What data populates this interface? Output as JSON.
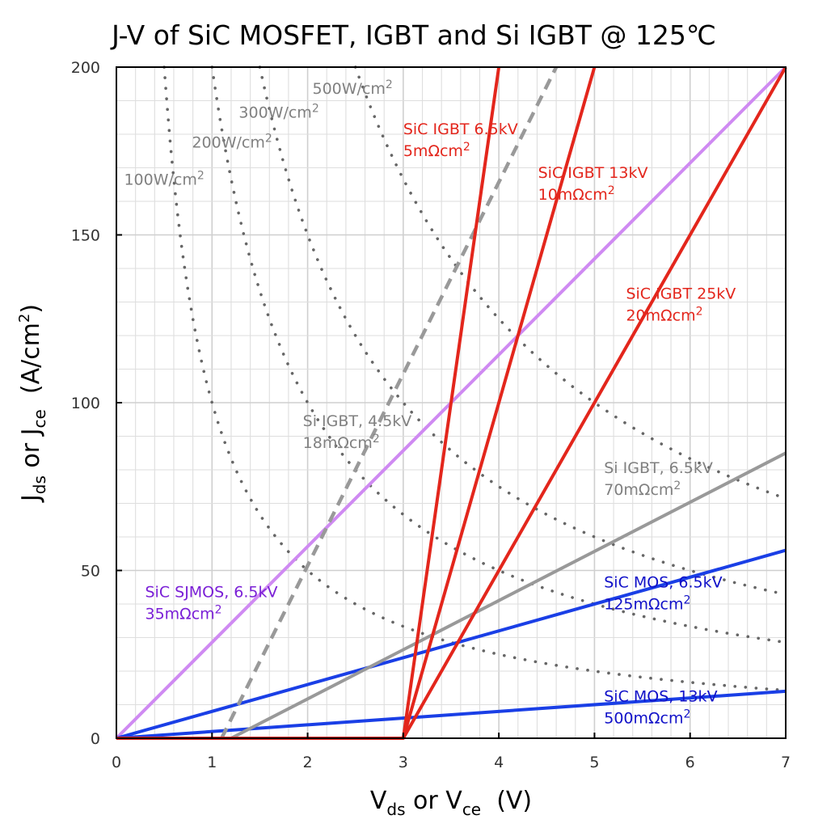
{
  "chart_data": {
    "type": "line",
    "title": "J-V of SiC MOSFET, IGBT and Si IGBT @ 125℃",
    "xlabel": {
      "main1": "V",
      "sub1": "ds",
      "mid": " or V",
      "sub2": "ce",
      "unit": "  (V)"
    },
    "ylabel": {
      "main1": "J",
      "sub1": "ds",
      "mid": " or J",
      "sub2": "ce",
      "unit": "  (A/cm",
      "sup": "2",
      "close": ")"
    },
    "xlim": [
      0,
      7
    ],
    "ylim": [
      0,
      200
    ],
    "xticks": [
      0,
      1,
      2,
      3,
      4,
      5,
      6,
      7
    ],
    "yticks": [
      0,
      50,
      100,
      150,
      200
    ],
    "xticklabels": [
      "0",
      "1",
      "2",
      "3",
      "4",
      "5",
      "6",
      "7"
    ],
    "yticklabels": [
      "0",
      "50",
      "100",
      "150",
      "200"
    ],
    "grid": {
      "x_minor_step": 0.2,
      "y_minor_step": 10
    },
    "series": [
      {
        "name": "SiC SJMOS, 6.5kV",
        "ron": "35mΩcm²",
        "color": "#cf8af2",
        "style": "solid",
        "points": [
          [
            0,
            0
          ],
          [
            7,
            200
          ]
        ]
      },
      {
        "name": "SiC MOS, 6.5kV",
        "ron": "125mΩcm²",
        "color": "#1a3fe6",
        "style": "solid",
        "points": [
          [
            0,
            0
          ],
          [
            7,
            56
          ]
        ]
      },
      {
        "name": "SiC MOS, 13kV",
        "ron": "500mΩcm²",
        "color": "#1a3fe6",
        "style": "solid",
        "points": [
          [
            0,
            0
          ],
          [
            7,
            14
          ]
        ]
      },
      {
        "name": "Si IGBT, 6.5kV",
        "ron": "70mΩcm²",
        "color": "#999999",
        "style": "solid",
        "points": [
          [
            1.2,
            0
          ],
          [
            7,
            85
          ]
        ]
      },
      {
        "name": "Si IGBT, 4.5kV",
        "ron": "18mΩcm²",
        "color": "#999999",
        "style": "dashed",
        "points": [
          [
            1.1,
            0
          ],
          [
            4.6,
            200
          ]
        ]
      },
      {
        "name": "SiC IGBT 25kV",
        "ron": "20mΩcm²",
        "color": "#e3261c",
        "style": "solid",
        "points": [
          [
            0,
            0
          ],
          [
            3,
            0
          ],
          [
            7,
            200
          ]
        ]
      },
      {
        "name": "SiC IGBT 13kV",
        "ron": "10mΩcm²",
        "color": "#e3261c",
        "style": "solid",
        "points": [
          [
            3,
            0
          ],
          [
            5,
            200
          ]
        ]
      },
      {
        "name": "SiC IGBT  6.5kV",
        "ron": "5mΩcm²",
        "color": "#e3261c",
        "style": "solid",
        "points": [
          [
            3,
            0
          ],
          [
            4,
            200
          ]
        ]
      }
    ],
    "power_curves": [
      {
        "label": "100W/cm²",
        "power": 100
      },
      {
        "label": "200W/cm²",
        "power": 200
      },
      {
        "label": "300W/cm²",
        "power": 300
      },
      {
        "label": "500W/cm²",
        "power": 500
      }
    ],
    "annotations": [
      {
        "line1": "SiC IGBT  6.5kV",
        "line2": "5mΩcm²",
        "color": "#e3261c",
        "at": [
          3.0,
          180
        ]
      },
      {
        "line1": "SiC IGBT 13kV",
        "line2": "10mΩcm²",
        "color": "#e3261c",
        "at": [
          4.41,
          167
        ]
      },
      {
        "line1": "SiC IGBT 25kV",
        "line2": "20mΩcm²",
        "color": "#e3261c",
        "at": [
          5.33,
          131
        ]
      },
      {
        "line1": "Si IGBT, 4.5kV",
        "line2": "18mΩcm²",
        "color": "#808080",
        "at": [
          1.95,
          93
        ]
      },
      {
        "line1": "Si IGBT, 6.5kV",
        "line2": "70mΩcm²",
        "color": "#808080",
        "at": [
          5.1,
          79
        ]
      },
      {
        "line1": "SiC SJMOS, 6.5kV",
        "line2": "35mΩcm²",
        "color": "#7a1fd6",
        "at": [
          0.3,
          42
        ]
      },
      {
        "line1": "SiC MOS, 6.5kV",
        "line2": "125mΩcm²",
        "color": "#1010c8",
        "at": [
          5.1,
          45
        ]
      },
      {
        "line1": "SiC MOS, 13kV",
        "line2": "500mΩcm²",
        "color": "#1010c8",
        "at": [
          5.1,
          11
        ]
      },
      {
        "line1": "100W/cm²",
        "line2": "",
        "color": "#808080",
        "at": [
          0.08,
          165
        ]
      },
      {
        "line1": "200W/cm²",
        "line2": "",
        "color": "#808080",
        "at": [
          0.79,
          176
        ]
      },
      {
        "line1": "300W/cm²",
        "line2": "",
        "color": "#808080",
        "at": [
          1.28,
          185
        ]
      },
      {
        "line1": "500W/cm²",
        "line2": "",
        "color": "#808080",
        "at": [
          2.05,
          192
        ]
      }
    ]
  }
}
